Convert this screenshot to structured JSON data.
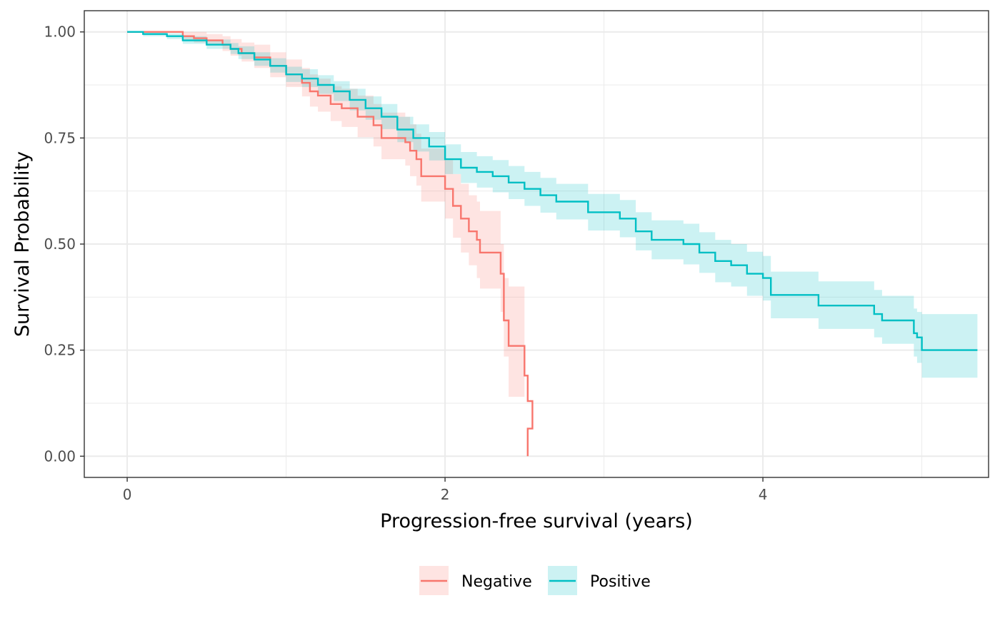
{
  "chart_data": {
    "type": "line",
    "step": true,
    "xlabel": "Progression-free survival (years)",
    "ylabel": "Survival Probability",
    "xlim": [
      -0.27,
      5.42
    ],
    "ylim": [
      -0.05,
      1.05
    ],
    "x_ticks": [
      0,
      2,
      4
    ],
    "x_tick_labels": [
      "0",
      "2",
      "4"
    ],
    "y_ticks": [
      0,
      0.25,
      0.5,
      0.75,
      1
    ],
    "y_tick_labels": [
      "0.00",
      "0.25",
      "0.50",
      "0.75",
      "1.00"
    ],
    "grid": true,
    "legend_position": "bottom",
    "series": [
      {
        "name": "Negative",
        "color": "#F8766D",
        "x": [
          0,
          0.35,
          0.42,
          0.5,
          0.6,
          0.65,
          0.72,
          0.8,
          0.9,
          1.0,
          1.1,
          1.15,
          1.2,
          1.28,
          1.35,
          1.45,
          1.55,
          1.6,
          1.75,
          1.78,
          1.82,
          1.85,
          2.0,
          2.05,
          2.1,
          2.15,
          2.2,
          2.22,
          2.25,
          2.35,
          2.37,
          2.4,
          2.5,
          2.52,
          2.55
        ],
        "y": [
          1.0,
          0.99,
          0.985,
          0.98,
          0.97,
          0.96,
          0.95,
          0.94,
          0.92,
          0.9,
          0.88,
          0.86,
          0.85,
          0.83,
          0.82,
          0.8,
          0.78,
          0.75,
          0.74,
          0.72,
          0.7,
          0.66,
          0.63,
          0.59,
          0.56,
          0.53,
          0.51,
          0.48,
          0.48,
          0.43,
          0.32,
          0.26,
          0.19,
          0.13,
          0.065
        ],
        "x_end": 2.52,
        "y_end": 0.0,
        "ci_lower": [
          1.0,
          0.98,
          0.975,
          0.968,
          0.955,
          0.944,
          0.93,
          0.915,
          0.893,
          0.87,
          0.848,
          0.824,
          0.812,
          0.79,
          0.776,
          0.752,
          0.73,
          0.7,
          0.685,
          0.66,
          0.638,
          0.6,
          0.56,
          0.515,
          0.48,
          0.45,
          0.42,
          0.395,
          0.395,
          0.34,
          0.235,
          0.14,
          0.14,
          0.14,
          0.14
        ],
        "ci_upper": [
          1.0,
          1.0,
          1.0,
          0.995,
          0.99,
          0.983,
          0.975,
          0.97,
          0.952,
          0.935,
          0.915,
          0.9,
          0.89,
          0.872,
          0.866,
          0.85,
          0.83,
          0.81,
          0.8,
          0.782,
          0.76,
          0.725,
          0.7,
          0.665,
          0.642,
          0.615,
          0.6,
          0.578,
          0.578,
          0.5,
          0.42,
          0.4,
          0.4,
          0.4,
          0.4
        ],
        "ci_x_end": 2.5
      },
      {
        "name": "Positive",
        "color": "#00BFC4",
        "x": [
          0,
          0.1,
          0.25,
          0.35,
          0.5,
          0.65,
          0.7,
          0.8,
          0.9,
          1.0,
          1.1,
          1.2,
          1.3,
          1.4,
          1.5,
          1.6,
          1.7,
          1.8,
          1.9,
          2.0,
          2.1,
          2.2,
          2.3,
          2.4,
          2.5,
          2.6,
          2.7,
          2.9,
          3.1,
          3.2,
          3.3,
          3.5,
          3.6,
          3.7,
          3.8,
          3.9,
          4.0,
          4.05,
          4.35,
          4.7,
          4.75,
          4.95,
          4.97,
          5.0
        ],
        "y": [
          1.0,
          0.995,
          0.99,
          0.98,
          0.97,
          0.96,
          0.95,
          0.935,
          0.92,
          0.9,
          0.89,
          0.875,
          0.86,
          0.84,
          0.82,
          0.8,
          0.77,
          0.75,
          0.73,
          0.7,
          0.68,
          0.67,
          0.66,
          0.645,
          0.63,
          0.615,
          0.6,
          0.575,
          0.56,
          0.53,
          0.51,
          0.5,
          0.48,
          0.46,
          0.45,
          0.43,
          0.42,
          0.38,
          0.355,
          0.335,
          0.32,
          0.29,
          0.28,
          0.25
        ],
        "x_end": 5.35,
        "y_end": 0.25,
        "ci_lower": [
          1.0,
          0.99,
          0.983,
          0.972,
          0.96,
          0.948,
          0.936,
          0.92,
          0.904,
          0.882,
          0.87,
          0.854,
          0.837,
          0.815,
          0.793,
          0.771,
          0.74,
          0.718,
          0.697,
          0.665,
          0.644,
          0.633,
          0.622,
          0.606,
          0.59,
          0.574,
          0.558,
          0.532,
          0.516,
          0.485,
          0.464,
          0.452,
          0.432,
          0.41,
          0.4,
          0.378,
          0.367,
          0.325,
          0.3,
          0.28,
          0.265,
          0.235,
          0.22,
          0.185
        ],
        "ci_upper": [
          1.0,
          1.0,
          0.997,
          0.99,
          0.982,
          0.974,
          0.966,
          0.952,
          0.938,
          0.918,
          0.912,
          0.898,
          0.884,
          0.866,
          0.848,
          0.83,
          0.8,
          0.782,
          0.764,
          0.735,
          0.717,
          0.707,
          0.698,
          0.684,
          0.67,
          0.656,
          0.642,
          0.618,
          0.604,
          0.575,
          0.556,
          0.548,
          0.528,
          0.51,
          0.5,
          0.482,
          0.472,
          0.435,
          0.412,
          0.392,
          0.378,
          0.348,
          0.34,
          0.335
        ]
      }
    ]
  },
  "legend": {
    "items": [
      {
        "label": "Negative",
        "color": "#F8766D"
      },
      {
        "label": "Positive",
        "color": "#00BFC4"
      }
    ]
  }
}
